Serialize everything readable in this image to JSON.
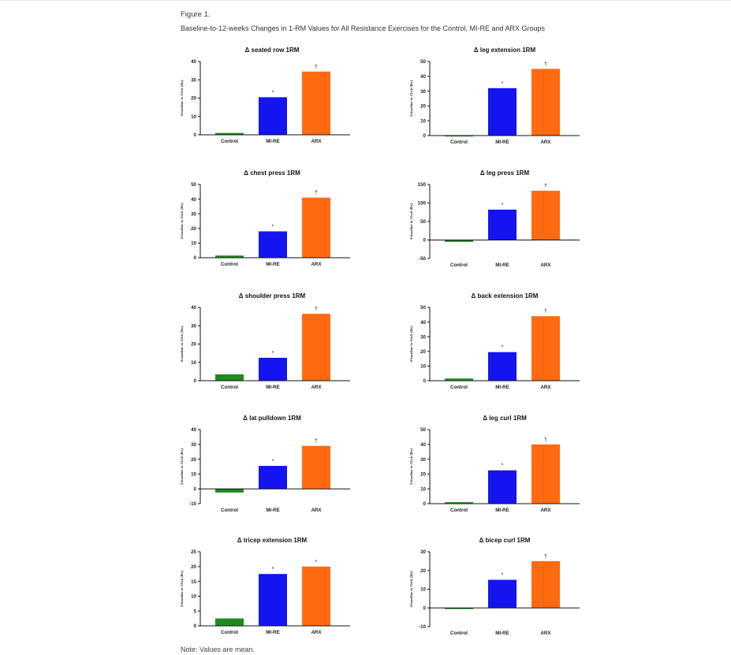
{
  "figure": {
    "label": "Figure 1.",
    "caption": "Baseline-to-12-weeks Changes in 1-RM Values for All Resistance Exercises for the Control, MI-RE and ARX Groups",
    "note": "Note: Values are mean."
  },
  "colors": {
    "Control": "#1f8a1f",
    "MI-RE": "#1414f0",
    "ARX": "#ff6a10"
  },
  "chart_data": [
    {
      "type": "bar",
      "title": "Δ seated row 1RM",
      "ylabel": "Δ baseline to 12wk (lbs)",
      "categories": [
        "Control",
        "MI-RE",
        "ARX"
      ],
      "values": [
        1,
        20.5,
        34.5
      ],
      "annotations": [
        "",
        "*",
        "†"
      ],
      "ylim": [
        0,
        40
      ],
      "yticks": [
        0,
        10,
        20,
        30,
        40
      ]
    },
    {
      "type": "bar",
      "title": "Δ leg extension 1RM",
      "ylabel": "Δ baseline to 12wk (lbs)",
      "categories": [
        "Control",
        "MI-RE",
        "ARX"
      ],
      "values": [
        0.2,
        32,
        45
      ],
      "annotations": [
        "",
        "*",
        "†"
      ],
      "ylim": [
        0,
        50
      ],
      "yticks": [
        0,
        10,
        20,
        30,
        40,
        50
      ]
    },
    {
      "type": "bar",
      "title": "Δ chest press 1RM",
      "ylabel": "Δ baseline to 12wk (lbs)",
      "categories": [
        "Control",
        "MI-RE",
        "ARX"
      ],
      "values": [
        1.5,
        18,
        41
      ],
      "annotations": [
        "",
        "*",
        "†"
      ],
      "ylim": [
        0,
        50
      ],
      "yticks": [
        0,
        10,
        20,
        30,
        40,
        50
      ]
    },
    {
      "type": "bar",
      "title": "Δ leg press 1RM",
      "ylabel": "Δ baseline to 12wk (lbs)",
      "categories": [
        "Control",
        "MI-RE",
        "ARX"
      ],
      "values": [
        -5,
        82,
        133
      ],
      "annotations": [
        "",
        "*",
        "†"
      ],
      "ylim": [
        -50,
        150
      ],
      "yticks": [
        -50,
        0,
        50,
        100,
        150
      ]
    },
    {
      "type": "bar",
      "title": "Δ shoulder press 1RM",
      "ylabel": "Δ baseline to 12wk (lbs)",
      "categories": [
        "Control",
        "MI-RE",
        "ARX"
      ],
      "values": [
        3.5,
        12.5,
        36.5
      ],
      "annotations": [
        "",
        "*",
        "†"
      ],
      "ylim": [
        0,
        40
      ],
      "yticks": [
        0,
        10,
        20,
        30,
        40
      ]
    },
    {
      "type": "bar",
      "title": "Δ back extension 1RM",
      "ylabel": "Δ baseline to 12wk (lbs)",
      "categories": [
        "Control",
        "MI-RE",
        "ARX"
      ],
      "values": [
        1.5,
        19.5,
        44
      ],
      "annotations": [
        "",
        "*",
        "†"
      ],
      "ylim": [
        0,
        50
      ],
      "yticks": [
        0,
        10,
        20,
        30,
        40,
        50
      ]
    },
    {
      "type": "bar",
      "title": "Δ lat pulldown 1RM",
      "ylabel": "Δ baseline to 12wk (lbs)",
      "categories": [
        "Control",
        "MI-RE",
        "ARX"
      ],
      "values": [
        -2.5,
        15.5,
        29
      ],
      "annotations": [
        "",
        "*",
        "†"
      ],
      "ylim": [
        -10,
        40
      ],
      "yticks": [
        -10,
        0,
        10,
        20,
        30,
        40
      ]
    },
    {
      "type": "bar",
      "title": "Δ leg curl 1RM",
      "ylabel": "Δ baseline to 12wk (lbs)",
      "categories": [
        "Control",
        "MI-RE",
        "ARX"
      ],
      "values": [
        1,
        22.5,
        40
      ],
      "annotations": [
        "",
        "*",
        "†"
      ],
      "ylim": [
        0,
        50
      ],
      "yticks": [
        0,
        10,
        20,
        30,
        40,
        50
      ]
    },
    {
      "type": "bar",
      "title": "Δ tricep extension 1RM",
      "ylabel": "Δ baseline to 12wk (lbs)",
      "categories": [
        "Control",
        "MI-RE",
        "ARX"
      ],
      "values": [
        2.5,
        17.5,
        20
      ],
      "annotations": [
        "",
        "*",
        "*"
      ],
      "ylim": [
        0,
        25
      ],
      "yticks": [
        0,
        5,
        10,
        15,
        20,
        25
      ]
    },
    {
      "type": "bar",
      "title": "Δ bicep curl 1RM",
      "ylabel": "Δ baseline to 12wk (lbs)",
      "categories": [
        "Control",
        "MI-RE",
        "ARX"
      ],
      "values": [
        -0.5,
        15,
        25
      ],
      "annotations": [
        "",
        "*",
        "†"
      ],
      "ylim": [
        -10,
        30
      ],
      "yticks": [
        -10,
        0,
        10,
        20,
        30
      ]
    }
  ]
}
